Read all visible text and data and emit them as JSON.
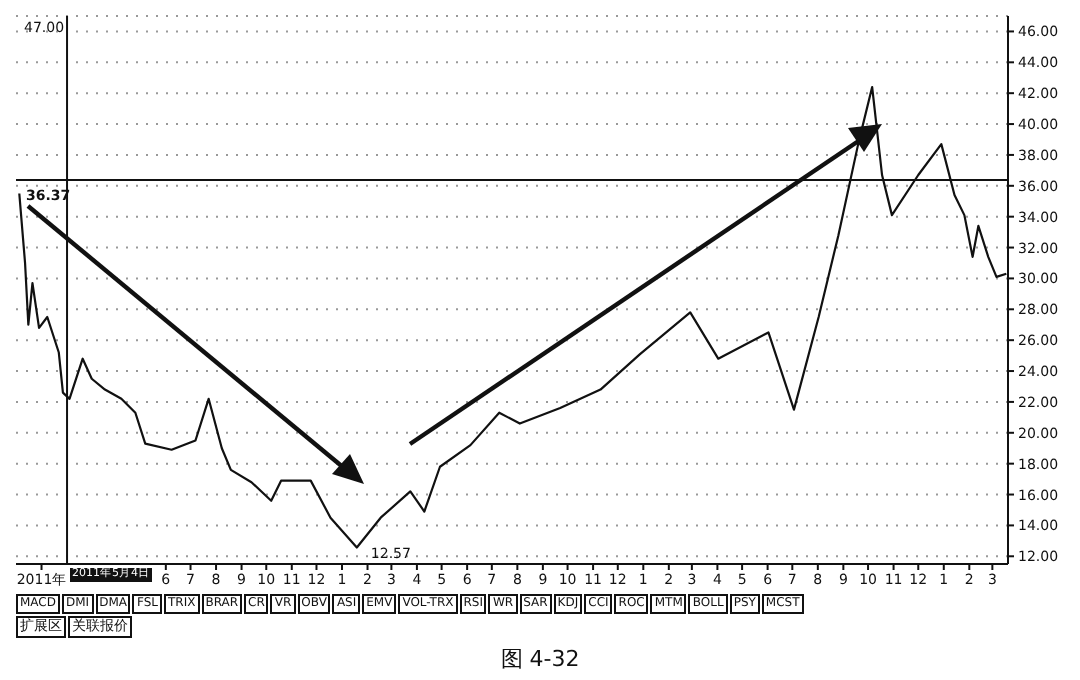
{
  "chart_data": {
    "type": "line",
    "title": null,
    "x": [
      "2010-12-05",
      "2010-12-12",
      "2010-12-16",
      "2010-12-21",
      "2010-12-29",
      "2011-01-08",
      "2011-01-22",
      "2011-01-27",
      "2011-02-04",
      "2011-02-20",
      "2011-03-03",
      "2011-03-19",
      "2011-04-08",
      "2011-04-25",
      "2011-05-07",
      "2011-06-08",
      "2011-07-07",
      "2011-07-23",
      "2011-08-08",
      "2011-08-19",
      "2011-09-13",
      "2011-10-07",
      "2011-10-19",
      "2011-11-24",
      "2011-12-18",
      "2012-01-19",
      "2012-02-17",
      "2012-03-24",
      "2012-04-10",
      "2012-04-29",
      "2012-06-05",
      "2012-07-10",
      "2012-08-04",
      "2012-09-22",
      "2012-11-10",
      "2012-12-28",
      "2013-02-27",
      "2013-04-02",
      "2013-06-02",
      "2013-07-03",
      "2013-08-02",
      "2013-08-26",
      "2013-09-19",
      "2013-10-06",
      "2013-10-18",
      "2013-10-30",
      "2013-12-01",
      "2013-12-29",
      "2014-01-14",
      "2014-01-26",
      "2014-02-05",
      "2014-02-12",
      "2014-02-24",
      "2014-03-06",
      "2014-03-18"
    ],
    "series": [
      {
        "color": "#111111",
        "values": [
          35.5,
          31,
          27,
          29.7,
          26.8,
          27.5,
          25.2,
          22.6,
          22.2,
          24.8,
          23.5,
          22.8,
          22.2,
          21.3,
          19.3,
          18.9,
          19.5,
          22.2,
          19,
          17.6,
          16.8,
          15.6,
          16.9,
          16.9,
          14.5,
          12.57,
          14.5,
          16.2,
          14.9,
          17.8,
          19.2,
          21.3,
          20.6,
          21.6,
          22.8,
          25.1,
          27.8,
          24.8,
          26.5,
          21.5,
          27.5,
          32.8,
          38.7,
          42.4,
          36.7,
          34.1,
          36.7,
          38.7,
          35.4,
          34.1,
          31.4,
          33.4,
          31.4,
          30.1,
          30.3
        ]
      }
    ],
    "xlim": [
      "2010-12-01",
      "2014-03-20"
    ],
    "xticks": [
      {
        "value": "2011-01-01",
        "label": "2011年"
      },
      {
        "value": "2011-06-01",
        "label": "6"
      },
      {
        "value": "2011-07-01",
        "label": "7"
      },
      {
        "value": "2011-08-01",
        "label": "8"
      },
      {
        "value": "2011-09-01",
        "label": "9"
      },
      {
        "value": "2011-10-01",
        "label": "10"
      },
      {
        "value": "2011-11-01",
        "label": "11"
      },
      {
        "value": "2011-12-01",
        "label": "12"
      },
      {
        "value": "2012-01-01",
        "label": "1"
      },
      {
        "value": "2012-02-01",
        "label": "2"
      },
      {
        "value": "2012-03-01",
        "label": "3"
      },
      {
        "value": "2012-04-01",
        "label": "4"
      },
      {
        "value": "2012-05-01",
        "label": "5"
      },
      {
        "value": "2012-06-01",
        "label": "6"
      },
      {
        "value": "2012-07-01",
        "label": "7"
      },
      {
        "value": "2012-08-01",
        "label": "8"
      },
      {
        "value": "2012-09-01",
        "label": "9"
      },
      {
        "value": "2012-10-01",
        "label": "10"
      },
      {
        "value": "2012-11-01",
        "label": "11"
      },
      {
        "value": "2012-12-01",
        "label": "12"
      },
      {
        "value": "2013-01-01",
        "label": "1"
      },
      {
        "value": "2013-02-01",
        "label": "2"
      },
      {
        "value": "2013-03-01",
        "label": "3"
      },
      {
        "value": "2013-04-01",
        "label": "4"
      },
      {
        "value": "2013-05-01",
        "label": "5"
      },
      {
        "value": "2013-06-01",
        "label": "6"
      },
      {
        "value": "2013-07-01",
        "label": "7"
      },
      {
        "value": "2013-08-01",
        "label": "8"
      },
      {
        "value": "2013-09-01",
        "label": "9"
      },
      {
        "value": "2013-10-01",
        "label": "10"
      },
      {
        "value": "2013-11-01",
        "label": "11"
      },
      {
        "value": "2013-12-01",
        "label": "12"
      },
      {
        "value": "2014-01-01",
        "label": "1"
      },
      {
        "value": "2014-02-01",
        "label": "2"
      },
      {
        "value": "2014-03-01",
        "label": "3"
      }
    ],
    "ylim": [
      11.5,
      47
    ],
    "yticks": [
      {
        "value": 12,
        "label": "12.00"
      },
      {
        "value": 14,
        "label": "14.00"
      },
      {
        "value": 16,
        "label": "16.00"
      },
      {
        "value": 18,
        "label": "18.00"
      },
      {
        "value": 20,
        "label": "20.00"
      },
      {
        "value": 22,
        "label": "22.00"
      },
      {
        "value": 24,
        "label": "24.00"
      },
      {
        "value": 26,
        "label": "26.00"
      },
      {
        "value": 28,
        "label": "28.00"
      },
      {
        "value": 30,
        "label": "30.00"
      },
      {
        "value": 32,
        "label": "32.00"
      },
      {
        "value": 34,
        "label": "34.00"
      },
      {
        "value": 36,
        "label": "36.00"
      },
      {
        "value": 38,
        "label": "38.00"
      },
      {
        "value": 40,
        "label": "40.00"
      },
      {
        "value": 42,
        "label": "42.00"
      },
      {
        "value": 44,
        "label": "44.00"
      },
      {
        "value": 46,
        "label": "46.00"
      }
    ],
    "ref_lines": [
      {
        "axis": "y",
        "value": 36.37,
        "label": "36.37",
        "color": "#111111"
      },
      {
        "axis": "x",
        "value": "2011-02-01",
        "color": "#111111"
      }
    ],
    "grid": "y",
    "marker": "none",
    "line_style": "solid",
    "annotations": [
      {
        "text": "12.57",
        "x": "2012-01-19",
        "y": 12.57
      },
      "47.00",
      "2011年5月4日",
      "图 4-32",
      "扩展区",
      "关联报价",
      "MACD",
      "DMI",
      "DMA",
      "FSL",
      "TRIX",
      "BRAR",
      "CR",
      "VR",
      "OBV",
      "ASI",
      "EMV",
      "VOL-TRX",
      "RSI",
      "WR",
      "SAR",
      "KDJ",
      "CCI",
      "ROC",
      "MTM",
      "BOLL",
      "PSY",
      "MCST"
    ]
  }
}
